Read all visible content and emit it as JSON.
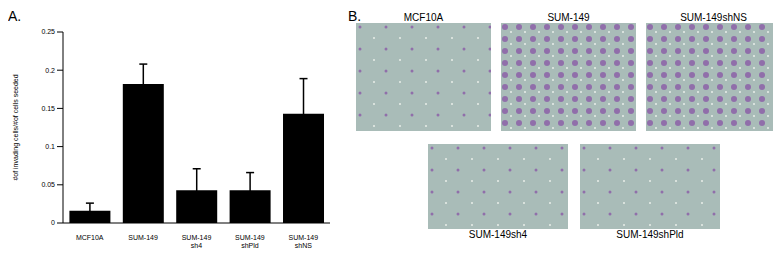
{
  "panels": [
    "A.",
    "B."
  ],
  "chart_data": {
    "type": "bar",
    "y_label": "#of invading cells/#of cells seeded",
    "categories": [
      "MCF10A",
      "SUM-149",
      "SUM-149 sh4",
      "SUM-149 shPld",
      "SUM-149 shNS"
    ],
    "values": [
      0.016,
      0.182,
      0.043,
      0.043,
      0.143
    ],
    "errors": [
      0.01,
      0.026,
      0.028,
      0.023,
      0.046
    ],
    "color": "#000000",
    "ylim": [
      0,
      0.25
    ],
    "yticks": [
      0,
      0.05,
      0.1,
      0.15,
      0.2,
      0.25
    ],
    "grid": false
  },
  "images": {
    "top_row": [
      "MCF10A",
      "SUM-149",
      "SUM-149shNS"
    ],
    "bottom_row": [
      "SUM-149sh4",
      "SUM-149shPld"
    ]
  }
}
